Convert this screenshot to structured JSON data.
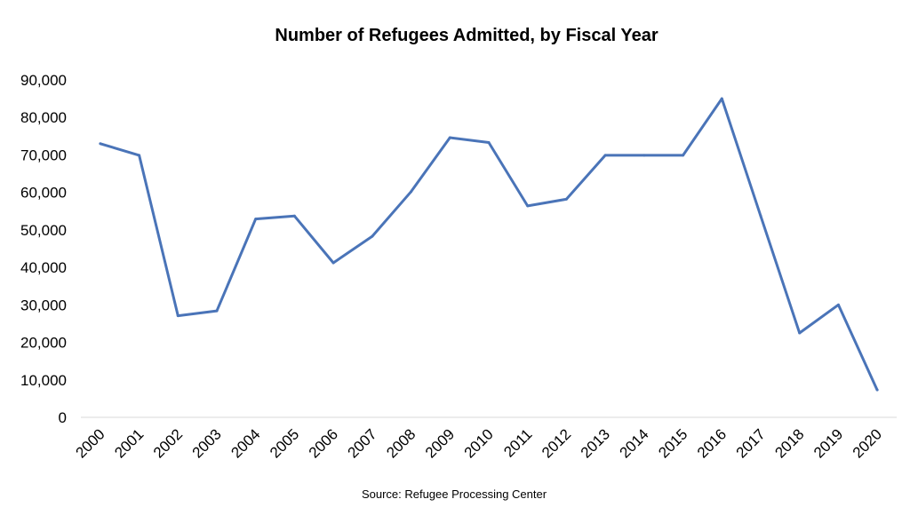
{
  "chart_data": {
    "type": "line",
    "title": "Number of Refugees Admitted, by Fiscal Year",
    "source": "Source: Refugee Processing Center",
    "x": [
      "2000",
      "2001",
      "2002",
      "2003",
      "2004",
      "2005",
      "2006",
      "2007",
      "2008",
      "2009",
      "2010",
      "2011",
      "2012",
      "2013",
      "2014",
      "2015",
      "2016",
      "2017",
      "2018",
      "2019",
      "2020"
    ],
    "y_ticks": [
      "0",
      "10,000",
      "20,000",
      "30,000",
      "40,000",
      "50,000",
      "60,000",
      "70,000",
      "80,000",
      "90,000"
    ],
    "ylim": [
      0,
      90000
    ],
    "series": [
      {
        "values": [
          73000,
          69900,
          27100,
          28400,
          52900,
          53700,
          41200,
          48300,
          60200,
          74600,
          73300,
          56400,
          58200,
          69900,
          69900,
          69900,
          85000,
          53700,
          22500,
          30000,
          7300
        ],
        "color": "#4a74b8"
      }
    ],
    "grid": false,
    "legend": "none"
  }
}
